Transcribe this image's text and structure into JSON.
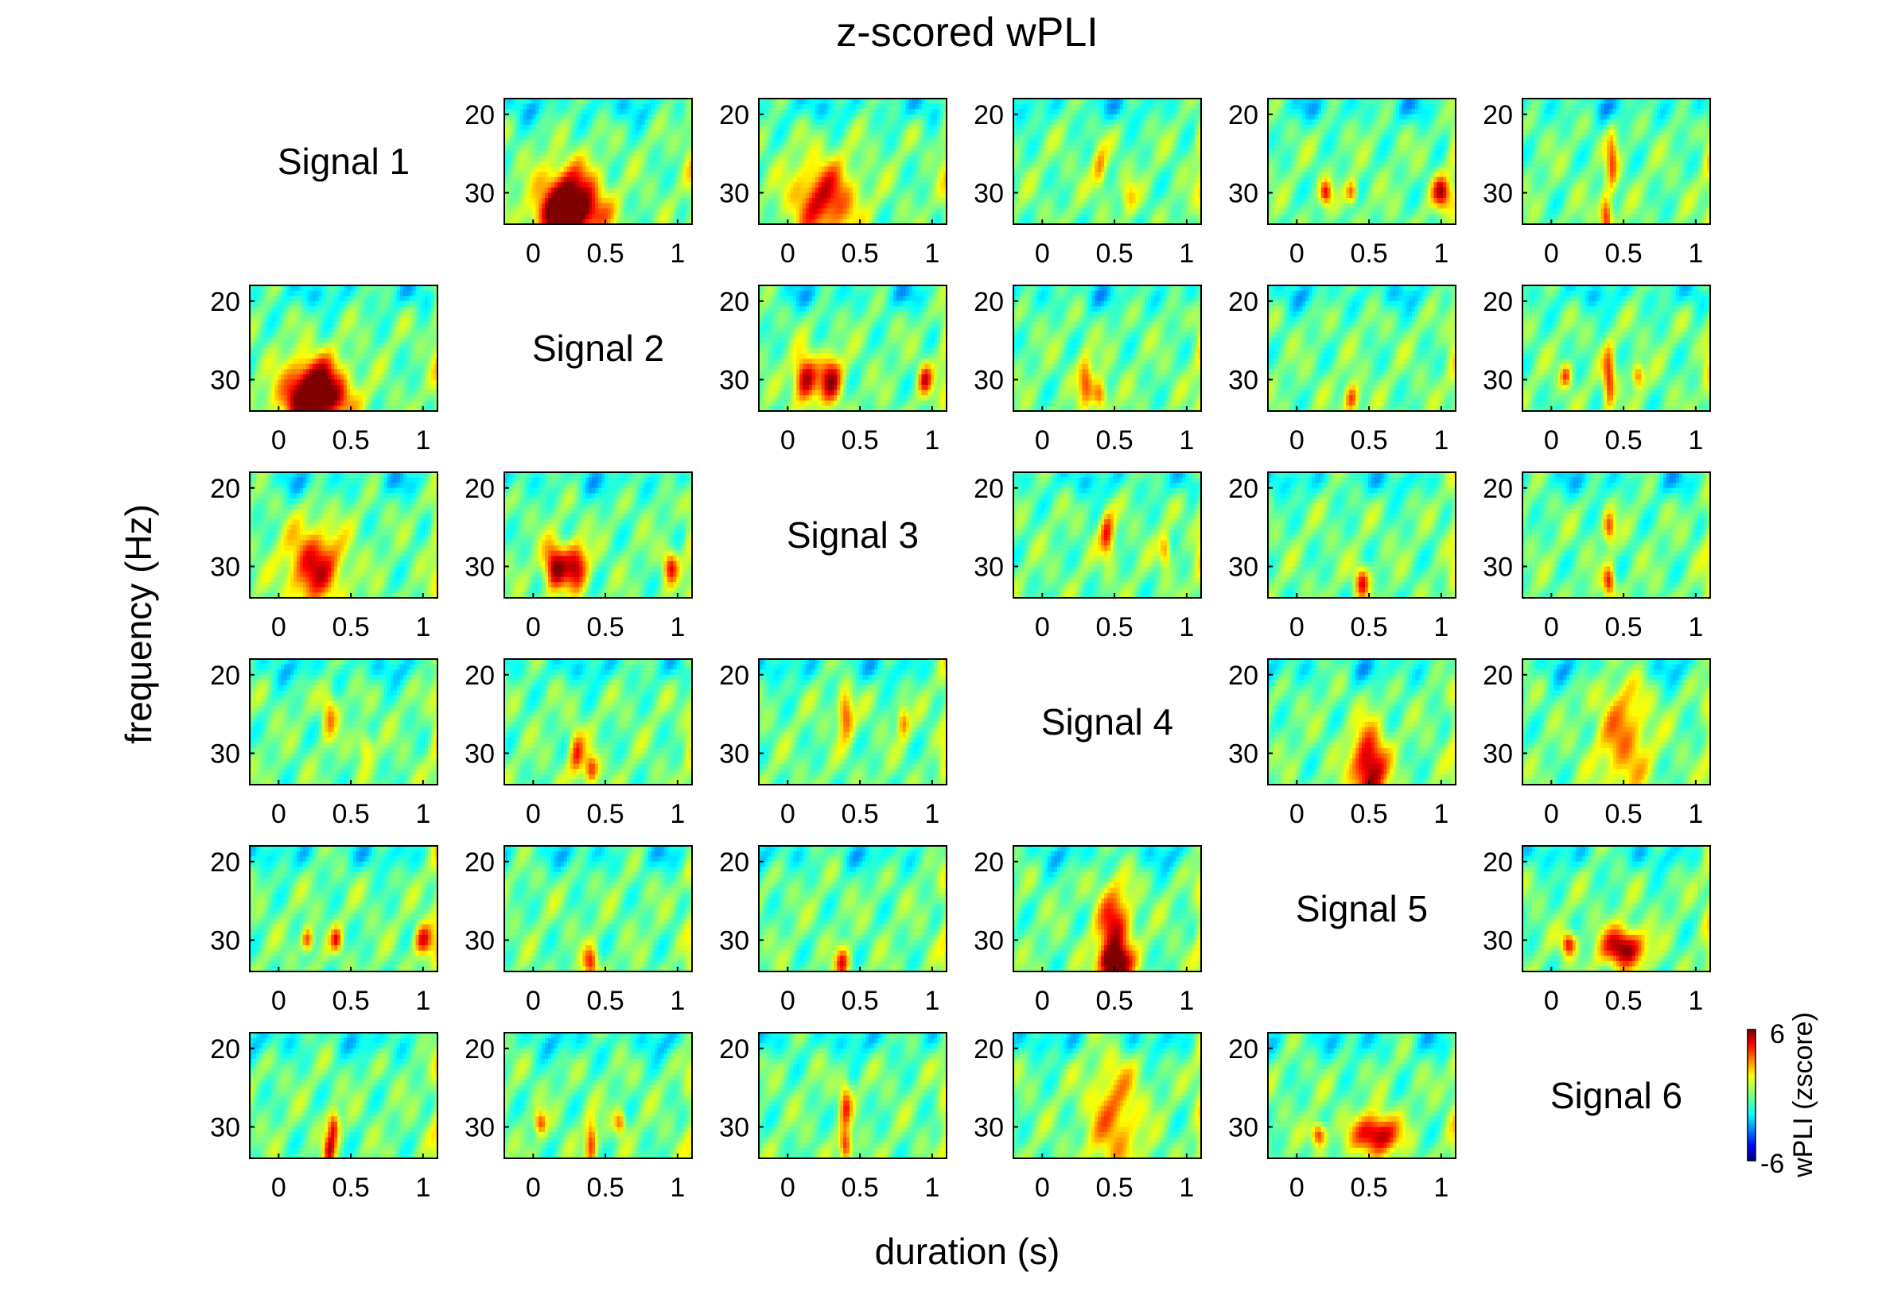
{
  "figure": {
    "title": "z-scored wPLI",
    "xlabel": "duration (s)",
    "ylabel": "frequency (Hz)"
  },
  "colorbar": {
    "label": "wPLI (zscore)",
    "max_label": "6",
    "min_label": "-6",
    "range": [
      -6,
      6
    ],
    "colormap": "jet"
  },
  "chart_data": {
    "type": "heatmap",
    "layout": "6x6 matrix",
    "rows": 6,
    "cols": 6,
    "diagonal_labels": [
      "Signal 1",
      "Signal 2",
      "Signal 3",
      "Signal 4",
      "Signal 5",
      "Signal 6"
    ],
    "x_ticks": [
      0,
      0.5,
      1
    ],
    "x_tick_labels": [
      "0",
      "0.5",
      "1"
    ],
    "x_range": [
      -0.2,
      1.1
    ],
    "y_ticks": [
      20,
      30
    ],
    "y_tick_labels": [
      "20",
      "30"
    ],
    "y_range": [
      18,
      34
    ],
    "y_reversed": true,
    "z_range": [
      -6,
      6
    ],
    "cells": [
      {
        "row": 1,
        "col": 2,
        "blobs": [
          {
            "t": 0.25,
            "f": 30.5,
            "z": 6.5,
            "wt": 0.2,
            "wf": 4
          },
          {
            "t": 0.25,
            "f": 33,
            "z": 4.5,
            "wt": 0.25,
            "wf": 2.5
          }
        ]
      },
      {
        "row": 1,
        "col": 3,
        "blobs": [
          {
            "t": 0.25,
            "f": 31,
            "z": 5,
            "wt": 0.22,
            "wf": 5
          }
        ]
      },
      {
        "row": 1,
        "col": 4,
        "blobs": [
          {
            "t": 0.4,
            "f": 27,
            "z": 2.8,
            "wt": 0.05,
            "wf": 3
          },
          {
            "t": 0.6,
            "f": 30.5,
            "z": 2.2,
            "wt": 0.05,
            "wf": 2
          }
        ]
      },
      {
        "row": 1,
        "col": 5,
        "blobs": [
          {
            "t": 0.2,
            "f": 30,
            "z": 4.5,
            "wt": 0.04,
            "wf": 1.5
          },
          {
            "t": 0.38,
            "f": 30,
            "z": 4,
            "wt": 0.04,
            "wf": 1.5
          },
          {
            "t": 1.0,
            "f": 30,
            "z": 5.2,
            "wt": 0.06,
            "wf": 2
          }
        ]
      },
      {
        "row": 1,
        "col": 6,
        "blobs": [
          {
            "t": 0.42,
            "f": 26,
            "z": 3.5,
            "wt": 0.04,
            "wf": 4
          },
          {
            "t": 0.38,
            "f": 33,
            "z": 5,
            "wt": 0.04,
            "wf": 2.5
          }
        ]
      },
      {
        "row": 2,
        "col": 1,
        "blobs": [
          {
            "t": 0.25,
            "f": 30.5,
            "z": 6.5,
            "wt": 0.2,
            "wf": 3.5
          },
          {
            "t": 0.25,
            "f": 33,
            "z": 4.5,
            "wt": 0.25,
            "wf": 2.5
          }
        ]
      },
      {
        "row": 2,
        "col": 3,
        "blobs": [
          {
            "t": 0.12,
            "f": 30,
            "z": 6,
            "wt": 0.08,
            "wf": 3
          },
          {
            "t": 0.3,
            "f": 30,
            "z": 5.5,
            "wt": 0.08,
            "wf": 3
          },
          {
            "t": 0.95,
            "f": 30,
            "z": 4.5,
            "wt": 0.05,
            "wf": 2
          }
        ]
      },
      {
        "row": 2,
        "col": 4,
        "blobs": [
          {
            "t": 0.3,
            "f": 30,
            "z": 4,
            "wt": 0.05,
            "wf": 3
          },
          {
            "t": 0.4,
            "f": 32,
            "z": 4.2,
            "wt": 0.05,
            "wf": 2
          }
        ]
      },
      {
        "row": 2,
        "col": 5,
        "blobs": [
          {
            "t": 0.38,
            "f": 32.5,
            "z": 4.5,
            "wt": 0.05,
            "wf": 2
          }
        ]
      },
      {
        "row": 2,
        "col": 6,
        "blobs": [
          {
            "t": 0.1,
            "f": 29.5,
            "z": 4,
            "wt": 0.04,
            "wf": 1.5
          },
          {
            "t": 0.4,
            "f": 30,
            "z": 4.5,
            "wt": 0.04,
            "wf": 4
          },
          {
            "t": 0.6,
            "f": 29.5,
            "z": 3.8,
            "wt": 0.04,
            "wf": 1.5
          }
        ]
      },
      {
        "row": 3,
        "col": 1,
        "blobs": [
          {
            "t": 0.25,
            "f": 30,
            "z": 5,
            "wt": 0.2,
            "wf": 5
          }
        ]
      },
      {
        "row": 3,
        "col": 2,
        "blobs": [
          {
            "t": 0.15,
            "f": 30,
            "z": 6,
            "wt": 0.08,
            "wf": 3
          },
          {
            "t": 0.3,
            "f": 30,
            "z": 5.5,
            "wt": 0.08,
            "wf": 3
          },
          {
            "t": 0.95,
            "f": 30,
            "z": 4.5,
            "wt": 0.05,
            "wf": 2
          }
        ]
      },
      {
        "row": 3,
        "col": 4,
        "blobs": [
          {
            "t": 0.45,
            "f": 26,
            "z": 4.5,
            "wt": 0.05,
            "wf": 3
          },
          {
            "t": 0.85,
            "f": 28,
            "z": 3.5,
            "wt": 0.04,
            "wf": 2
          }
        ]
      },
      {
        "row": 3,
        "col": 5,
        "blobs": [
          {
            "t": 0.45,
            "f": 32,
            "z": 4.8,
            "wt": 0.05,
            "wf": 2
          }
        ]
      },
      {
        "row": 3,
        "col": 6,
        "blobs": [
          {
            "t": 0.4,
            "f": 25,
            "z": 4,
            "wt": 0.04,
            "wf": 2
          },
          {
            "t": 0.4,
            "f": 32,
            "z": 4.8,
            "wt": 0.04,
            "wf": 2
          }
        ]
      },
      {
        "row": 4,
        "col": 1,
        "blobs": [
          {
            "t": 0.35,
            "f": 25,
            "z": 3,
            "wt": 0.05,
            "wf": 3
          },
          {
            "t": 0.6,
            "f": 29,
            "z": 2.5,
            "wt": 0.05,
            "wf": 2
          }
        ]
      },
      {
        "row": 4,
        "col": 2,
        "blobs": [
          {
            "t": 0.3,
            "f": 30,
            "z": 4,
            "wt": 0.05,
            "wf": 3
          },
          {
            "t": 0.4,
            "f": 32,
            "z": 4.3,
            "wt": 0.05,
            "wf": 2
          }
        ]
      },
      {
        "row": 4,
        "col": 3,
        "blobs": [
          {
            "t": 0.4,
            "f": 25,
            "z": 4.5,
            "wt": 0.05,
            "wf": 3
          },
          {
            "t": 0.8,
            "f": 26,
            "z": 3.5,
            "wt": 0.04,
            "wf": 2
          }
        ]
      },
      {
        "row": 4,
        "col": 5,
        "blobs": [
          {
            "t": 0.5,
            "f": 32,
            "z": 6.5,
            "wt": 0.12,
            "wf": 5
          }
        ]
      },
      {
        "row": 4,
        "col": 6,
        "blobs": [
          {
            "t": 0.5,
            "f": 28,
            "z": 3.2,
            "wt": 0.18,
            "wf": 8
          }
        ]
      },
      {
        "row": 5,
        "col": 1,
        "blobs": [
          {
            "t": 0.2,
            "f": 30,
            "z": 4.5,
            "wt": 0.04,
            "wf": 1.5
          },
          {
            "t": 0.4,
            "f": 30,
            "z": 4,
            "wt": 0.04,
            "wf": 1.5
          },
          {
            "t": 1.0,
            "f": 30,
            "z": 5.2,
            "wt": 0.06,
            "wf": 2
          }
        ]
      },
      {
        "row": 5,
        "col": 2,
        "blobs": [
          {
            "t": 0.4,
            "f": 33,
            "z": 4.5,
            "wt": 0.05,
            "wf": 2
          }
        ]
      },
      {
        "row": 5,
        "col": 3,
        "blobs": [
          {
            "t": 0.38,
            "f": 33,
            "z": 4.5,
            "wt": 0.05,
            "wf": 2
          }
        ]
      },
      {
        "row": 5,
        "col": 4,
        "blobs": [
          {
            "t": 0.5,
            "f": 29,
            "z": 5,
            "wt": 0.12,
            "wf": 6
          },
          {
            "t": 0.5,
            "f": 33,
            "z": 6.5,
            "wt": 0.1,
            "wf": 2
          }
        ]
      },
      {
        "row": 5,
        "col": 6,
        "blobs": [
          {
            "t": 0.12,
            "f": 30.5,
            "z": 5,
            "wt": 0.05,
            "wf": 1.5
          },
          {
            "t": 0.5,
            "f": 31,
            "z": 6.5,
            "wt": 0.15,
            "wf": 2.5
          }
        ]
      },
      {
        "row": 6,
        "col": 1,
        "blobs": [
          {
            "t": 0.38,
            "f": 30,
            "z": 4.8,
            "wt": 0.04,
            "wf": 2
          },
          {
            "t": 0.35,
            "f": 33,
            "z": 4.5,
            "wt": 0.04,
            "wf": 2
          }
        ]
      },
      {
        "row": 6,
        "col": 2,
        "blobs": [
          {
            "t": 0.05,
            "f": 29.5,
            "z": 4,
            "wt": 0.04,
            "wf": 1.5
          },
          {
            "t": 0.4,
            "f": 32,
            "z": 4.5,
            "wt": 0.04,
            "wf": 3
          },
          {
            "t": 0.6,
            "f": 29.5,
            "z": 3.8,
            "wt": 0.04,
            "wf": 1.5
          }
        ]
      },
      {
        "row": 6,
        "col": 3,
        "blobs": [
          {
            "t": 0.4,
            "f": 27,
            "z": 3.8,
            "wt": 0.04,
            "wf": 3
          },
          {
            "t": 0.4,
            "f": 32.5,
            "z": 5,
            "wt": 0.04,
            "wf": 2
          }
        ]
      },
      {
        "row": 6,
        "col": 4,
        "blobs": [
          {
            "t": 0.5,
            "f": 29,
            "z": 3.2,
            "wt": 0.18,
            "wf": 8
          }
        ]
      },
      {
        "row": 6,
        "col": 5,
        "blobs": [
          {
            "t": 0.15,
            "f": 31,
            "z": 5,
            "wt": 0.05,
            "wf": 1.5
          },
          {
            "t": 0.55,
            "f": 31,
            "z": 6.5,
            "wt": 0.15,
            "wf": 2.5
          }
        ]
      }
    ]
  }
}
